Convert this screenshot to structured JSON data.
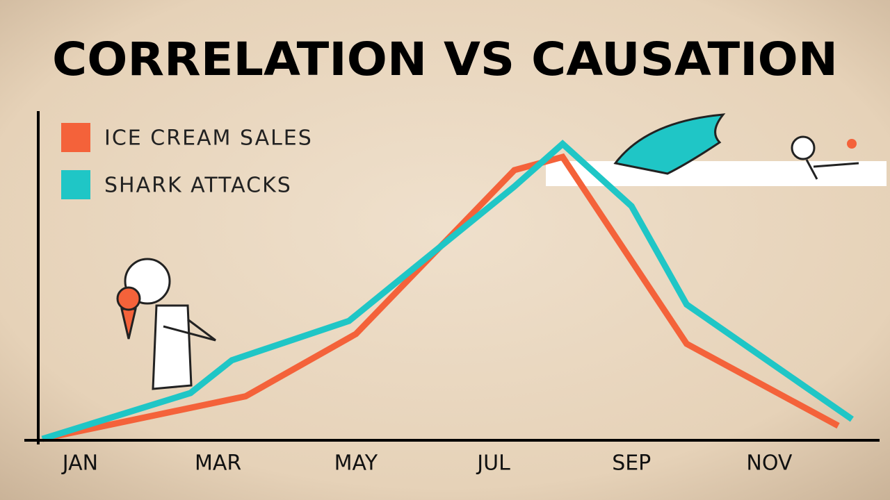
{
  "chart_data": {
    "type": "line",
    "title": "CORRELATION VS CAUSATION",
    "xlim": [
      0.39,
      12.6
    ],
    "ylim": [
      0,
      100
    ],
    "xticks": [
      {
        "value": 1,
        "label": "JAN"
      },
      {
        "value": 3,
        "label": "MAR"
      },
      {
        "value": 5,
        "label": "MAY"
      },
      {
        "value": 7,
        "label": "JUL"
      },
      {
        "value": 9,
        "label": "SEP"
      },
      {
        "value": 11,
        "label": "NOV"
      }
    ],
    "series": [
      {
        "name": "ICE CREAM SALES",
        "color": "#f4623a",
        "x": [
          0.45,
          3.4,
          5.0,
          7.3,
          8.0,
          9.8,
          12.0
        ],
        "values": [
          0,
          13,
          32,
          82,
          86,
          29,
          4
        ]
      },
      {
        "name": "SHARK ATTACKS",
        "color": "#1fc6c6",
        "x": [
          0.45,
          2.6,
          3.2,
          4.9,
          7.3,
          8.0,
          9.0,
          9.8,
          12.2
        ],
        "values": [
          0,
          14,
          24,
          36,
          77,
          90,
          71,
          41,
          6
        ]
      }
    ]
  }
}
